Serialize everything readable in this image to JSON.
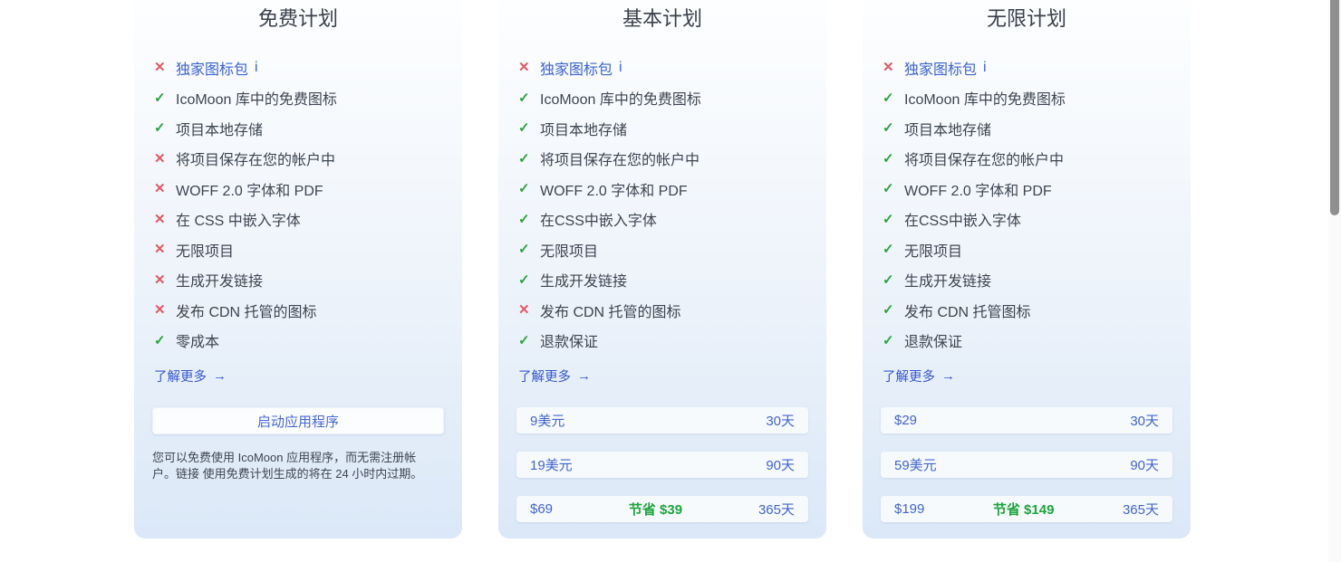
{
  "icons": {
    "check": "✓",
    "cross": "✕",
    "arrow_right": "→"
  },
  "colors": {
    "link_blue": "#3b63d3",
    "price_blue": "#4065cf",
    "check_green": "#27a63c",
    "cross_red": "#e05a66",
    "savings_green": "#1ca53b",
    "card_gradient_top": "#fdfeff",
    "card_gradient_bottom": "#dbe8f7",
    "price_row_bg": "#f7fafd",
    "scrollbar_thumb": "#8f8f8f"
  },
  "plans": [
    {
      "title": "免费计划",
      "learn_more_label": "了解更多",
      "features": [
        {
          "state": "no",
          "label": "独家图标包",
          "link": true,
          "info": "i"
        },
        {
          "state": "yes",
          "label": "IcoMoon 库中的免费图标"
        },
        {
          "state": "yes",
          "label": "项目本地存储"
        },
        {
          "state": "no",
          "label": "将项目保存在您的帐户中"
        },
        {
          "state": "no",
          "label": "WOFF 2.0 字体和 PDF"
        },
        {
          "state": "no",
          "label": "在 CSS 中嵌入字体"
        },
        {
          "state": "no",
          "label": "无限项目"
        },
        {
          "state": "no",
          "label": "生成开发链接"
        },
        {
          "state": "no",
          "label": "发布 CDN 托管的图标"
        },
        {
          "state": "yes",
          "label": "零成本"
        }
      ],
      "cta_label": "启动应用程序",
      "footnote": "您可以免费使用 IcoMoon 应用程序，而无需注册帐户。链接 使用免费计划生成的将在 24 小时内过期。"
    },
    {
      "title": "基本计划",
      "learn_more_label": "了解更多",
      "features": [
        {
          "state": "no",
          "label": "独家图标包",
          "link": true,
          "info": "i"
        },
        {
          "state": "yes",
          "label": "IcoMoon 库中的免费图标"
        },
        {
          "state": "yes",
          "label": "项目本地存储"
        },
        {
          "state": "yes",
          "label": "将项目保存在您的帐户中"
        },
        {
          "state": "yes",
          "label": "WOFF 2.0 字体和 PDF"
        },
        {
          "state": "yes",
          "label": "在CSS中嵌入字体"
        },
        {
          "state": "yes",
          "label": "无限项目"
        },
        {
          "state": "yes",
          "label": "生成开发链接"
        },
        {
          "state": "no",
          "label": "发布 CDN 托管的图标"
        },
        {
          "state": "yes",
          "label": "退款保证"
        }
      ],
      "pricing": [
        {
          "price": "9美元",
          "savings": "",
          "duration": "30天"
        },
        {
          "price": "19美元",
          "savings": "",
          "duration": "90天"
        },
        {
          "price": "$69",
          "savings": "节省 $39",
          "duration": "365天"
        }
      ]
    },
    {
      "title": "无限计划",
      "learn_more_label": "了解更多",
      "features": [
        {
          "state": "no",
          "label": "独家图标包",
          "link": true,
          "info": "i"
        },
        {
          "state": "yes",
          "label": "IcoMoon 库中的免费图标"
        },
        {
          "state": "yes",
          "label": "项目本地存储"
        },
        {
          "state": "yes",
          "label": "将项目保存在您的帐户中"
        },
        {
          "state": "yes",
          "label": "WOFF 2.0 字体和 PDF"
        },
        {
          "state": "yes",
          "label": "在CSS中嵌入字体"
        },
        {
          "state": "yes",
          "label": "无限项目"
        },
        {
          "state": "yes",
          "label": "生成开发链接"
        },
        {
          "state": "yes",
          "label": "发布 CDN 托管图标"
        },
        {
          "state": "yes",
          "label": "退款保证"
        }
      ],
      "pricing": [
        {
          "price": "$29",
          "savings": "",
          "duration": "30天"
        },
        {
          "price": "59美元",
          "savings": "",
          "duration": "90天"
        },
        {
          "price": "$199",
          "savings": "节省 $149",
          "duration": "365天"
        }
      ]
    }
  ]
}
